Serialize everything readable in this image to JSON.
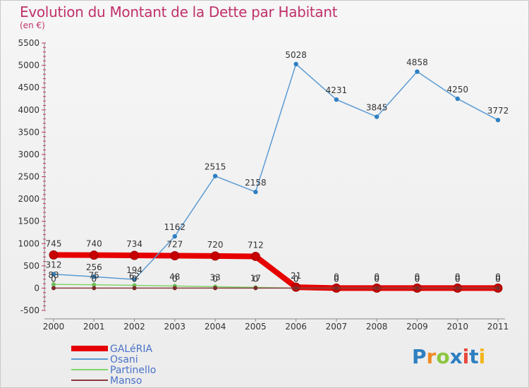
{
  "header": {
    "title": "Evolution du Montant de la Dette par Habitant",
    "subtitle": "(en €)"
  },
  "logo": {
    "letters": [
      "P",
      "r",
      "o",
      "x",
      "i",
      "t",
      "i"
    ]
  },
  "chart_data": {
    "type": "line",
    "title": "Evolution du Montant de la Dette par Habitant",
    "subtitle": "(en €)",
    "x": [
      "2000",
      "2001",
      "2002",
      "2003",
      "2004",
      "2005",
      "2006",
      "2007",
      "2008",
      "2009",
      "2010",
      "2011"
    ],
    "ylim": [
      -500,
      5500
    ],
    "yticks": [
      "-500",
      "0",
      "500",
      "1000",
      "1500",
      "2000",
      "2500",
      "3000",
      "3500",
      "4000",
      "4500",
      "5000",
      "5500"
    ],
    "ytick_values": [
      -500,
      0,
      500,
      1000,
      1500,
      2000,
      2500,
      3000,
      3500,
      4000,
      4500,
      5000,
      5500
    ],
    "legend_placement": "bottom-left",
    "grid": false,
    "series": [
      {
        "name": "GALéRIA",
        "color": "#e60000",
        "values": [
          745,
          740,
          734,
          727,
          720,
          712,
          21,
          0,
          0,
          0,
          0,
          0
        ],
        "labels": [
          "745",
          "740",
          "734",
          "727",
          "720",
          "712",
          "21",
          "0",
          "0",
          "0",
          "0",
          "0"
        ]
      },
      {
        "name": "Osani",
        "color": "#5b9bd5",
        "values": [
          312,
          256,
          194,
          1162,
          2515,
          2158,
          5028,
          4231,
          3845,
          4858,
          4250,
          3772
        ],
        "labels": [
          "312",
          "256",
          "194",
          "1162",
          "2515",
          "2158",
          "5028",
          "4231",
          "3845",
          "4858",
          "4250",
          "3772"
        ]
      },
      {
        "name": "Partinello",
        "color": "#7fd66b",
        "values": [
          83,
          75,
          62,
          48,
          33,
          17,
          0,
          0,
          0,
          0,
          0,
          0
        ],
        "labels": [
          "83",
          "75",
          "62",
          "48",
          "33",
          "17",
          "0",
          "0",
          "0",
          "0",
          "0",
          "0"
        ]
      },
      {
        "name": "Manso",
        "color": "#8b3a3a",
        "values": [
          0,
          0,
          0,
          0,
          0,
          0,
          0,
          0,
          0,
          0,
          0,
          0
        ],
        "labels": [
          "0",
          "0",
          "0",
          "0",
          "0",
          "0",
          "0",
          "0",
          "0",
          "0",
          "0",
          "0"
        ]
      }
    ]
  }
}
